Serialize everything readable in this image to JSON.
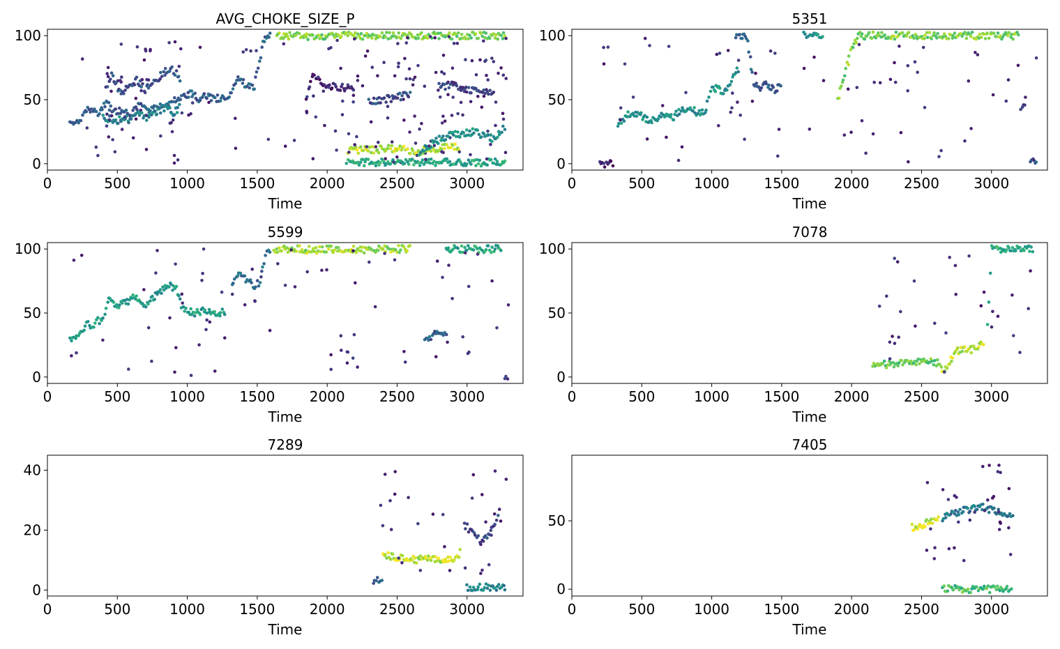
{
  "figure": {
    "layout": "3 rows x 2 columns",
    "colormap": "viridis",
    "background": "#ffffff"
  },
  "chart_data": [
    {
      "type": "scatter",
      "title": "AVG_CHOKE_SIZE_P",
      "xlabel": "Time",
      "ylabel": "",
      "xlim": [
        0,
        3400
      ],
      "ylim": [
        -5,
        105
      ],
      "xticks": [
        0,
        500,
        1000,
        1500,
        2000,
        2500,
        3000
      ],
      "yticks": [
        0,
        50,
        100
      ],
      "grid": false,
      "colormap": "viridis",
      "trend_segments": [
        {
          "x": [
            160,
            200,
            230,
            260,
            300,
            360,
            420,
            480,
            540,
            600,
            660,
            720,
            780,
            840,
            900,
            960,
            1020,
            1080,
            1140,
            1200,
            1260,
            1300,
            1360,
            1420,
            1480,
            1540,
            1600
          ],
          "y": [
            30,
            31,
            33,
            42,
            43,
            40,
            47,
            41,
            42,
            39,
            47,
            40,
            44,
            46,
            49,
            52,
            55,
            51,
            53,
            51,
            52,
            53,
            66,
            62,
            60,
            95,
            100
          ],
          "c": 0.3
        },
        {
          "x": [
            400,
            450,
            500,
            550,
            600,
            650,
            700,
            750,
            800,
            850,
            900,
            950
          ],
          "y": [
            36,
            35,
            34,
            36,
            34,
            38,
            36,
            37,
            42,
            44,
            40,
            45
          ],
          "c": 0.45
        },
        {
          "x": [
            420,
            460,
            520,
            580,
            640,
            700,
            760,
            820,
            880,
            920,
            960
          ],
          "y": [
            58,
            70,
            55,
            60,
            65,
            58,
            63,
            70,
            74,
            70,
            62
          ],
          "c": 0.25
        },
        {
          "x": [
            1640,
            1700,
            1760,
            1820,
            1900,
            2000,
            2100,
            2200,
            2300,
            2400,
            2500,
            2600,
            2700,
            2800,
            2900,
            3000,
            3100,
            3200,
            3280
          ],
          "y": [
            100,
            100,
            100,
            100,
            99,
            100,
            100,
            100,
            99,
            100,
            100,
            100,
            100,
            100,
            100,
            100,
            100,
            100,
            100
          ],
          "c": 0.8
        },
        {
          "x": [
            2150,
            2250,
            2350,
            2450,
            2550,
            2650,
            2700,
            2800,
            2900,
            2950
          ],
          "y": [
            10,
            11,
            11,
            12,
            11,
            9,
            11,
            12,
            13,
            12
          ],
          "c": 0.9
        },
        {
          "x": [
            2140,
            2300,
            2500,
            2700,
            2900,
            3100,
            3280
          ],
          "y": [
            1,
            1,
            1,
            1,
            1,
            1,
            1
          ],
          "c": 0.6
        },
        {
          "x": [
            2660,
            2700,
            2760,
            2820,
            2880,
            2940,
            3000,
            3060,
            3120,
            3180,
            3240,
            3280
          ],
          "y": [
            5,
            12,
            16,
            20,
            22,
            23,
            24,
            25,
            22,
            20,
            25,
            30
          ],
          "c": 0.5
        },
        {
          "x": [
            2300,
            2400,
            2500,
            2600
          ],
          "y": [
            48,
            50,
            52,
            54
          ],
          "c": 0.25
        },
        {
          "x": [
            2800,
            2900,
            3000,
            3100,
            3200
          ],
          "y": [
            60,
            62,
            58,
            56,
            55
          ],
          "c": 0.2
        },
        {
          "x": [
            1850,
            1900,
            2000,
            2100,
            2200
          ],
          "y": [
            50,
            70,
            60,
            60,
            58
          ],
          "c": 0.1
        }
      ]
    },
    {
      "type": "scatter",
      "title": "5351",
      "xlabel": "Time",
      "ylabel": "",
      "xlim": [
        0,
        3400
      ],
      "ylim": [
        -5,
        105
      ],
      "xticks": [
        0,
        500,
        1000,
        1500,
        2000,
        2500,
        3000
      ],
      "yticks": [
        0,
        50,
        100
      ],
      "grid": false,
      "colormap": "viridis",
      "trend_segments": [
        {
          "x": [
            200,
            300
          ],
          "y": [
            0,
            0
          ],
          "c": 0.05
        },
        {
          "x": [
            330,
            380,
            430,
            480,
            540,
            600,
            660,
            720,
            780,
            840,
            900,
            960,
            1000,
            1050,
            1100,
            1150,
            1200
          ],
          "y": [
            30,
            36,
            40,
            38,
            35,
            34,
            38,
            36,
            42,
            44,
            40,
            42,
            60,
            58,
            56,
            66,
            75
          ],
          "c": 0.5
        },
        {
          "x": [
            1170,
            1200,
            1250,
            1300,
            1350,
            1400,
            1450,
            1500
          ],
          "y": [
            100,
            100,
            100,
            64,
            60,
            62,
            58,
            60
          ],
          "c": 0.3
        },
        {
          "x": [
            1660,
            1700,
            1760,
            1800
          ],
          "y": [
            100,
            100,
            100,
            100
          ],
          "c": 0.5
        },
        {
          "x": [
            1900,
            1950,
            2000,
            2050,
            2100,
            2200,
            2300,
            2400,
            2500,
            2600,
            2700,
            2800,
            2900,
            3000,
            3100,
            3200
          ],
          "y": [
            50,
            70,
            90,
            100,
            100,
            100,
            100,
            100,
            100,
            100,
            100,
            100,
            100,
            100,
            100,
            100
          ],
          "c": 0.8
        },
        {
          "x": [
            3210,
            3250
          ],
          "y": [
            45,
            45
          ],
          "c": 0.2
        },
        {
          "x": [
            3280,
            3330
          ],
          "y": [
            1,
            1
          ],
          "c": 0.25
        }
      ]
    },
    {
      "type": "scatter",
      "title": "5599",
      "xlabel": "Time",
      "ylabel": "",
      "xlim": [
        0,
        3400
      ],
      "ylim": [
        -5,
        105
      ],
      "xticks": [
        0,
        500,
        1000,
        1500,
        2000,
        2500,
        3000
      ],
      "yticks": [
        0,
        50,
        100
      ],
      "grid": false,
      "colormap": "viridis",
      "trend_segments": [
        {
          "x": [
            160,
            200,
            240,
            280,
            320,
            360,
            400,
            440,
            500,
            560,
            620,
            680,
            740,
            800,
            860,
            920,
            960,
            1000,
            1060,
            1120,
            1180,
            1240,
            1280
          ],
          "y": [
            30,
            31,
            34,
            42,
            40,
            44,
            45,
            62,
            55,
            58,
            63,
            55,
            60,
            66,
            72,
            68,
            55,
            52,
            50,
            52,
            51,
            50,
            52
          ],
          "c": 0.55
        },
        {
          "x": [
            1320,
            1360,
            1400,
            1440,
            1480,
            1520,
            1560,
            1600
          ],
          "y": [
            72,
            80,
            78,
            76,
            70,
            75,
            95,
            100
          ],
          "c": 0.35
        },
        {
          "x": [
            1620,
            1700,
            1800,
            1900,
            2000,
            2100,
            2200,
            2300,
            2400,
            2500,
            2600
          ],
          "y": [
            100,
            100,
            100,
            99,
            100,
            100,
            100,
            99,
            100,
            100,
            100
          ],
          "c": 0.85
        },
        {
          "x": [
            2700,
            2760,
            2820,
            2860
          ],
          "y": [
            28,
            33,
            35,
            35
          ],
          "c": 0.3
        },
        {
          "x": [
            2850,
            2900,
            3000,
            3100,
            3200,
            3250
          ],
          "y": [
            100,
            100,
            100,
            100,
            100,
            100
          ],
          "c": 0.6
        },
        {
          "x": [
            3270,
            3300
          ],
          "y": [
            1,
            1
          ],
          "c": 0.2
        }
      ]
    },
    {
      "type": "scatter",
      "title": "7078",
      "xlabel": "Time",
      "ylabel": "",
      "xlim": [
        0,
        3400
      ],
      "ylim": [
        -5,
        105
      ],
      "xticks": [
        0,
        500,
        1000,
        1500,
        2000,
        2500,
        3000
      ],
      "yticks": [
        0,
        50,
        100
      ],
      "grid": false,
      "colormap": "viridis",
      "trend_segments": [
        {
          "x": [
            2150,
            2250,
            2350,
            2450,
            2550,
            2650
          ],
          "y": [
            9,
            10,
            11,
            11,
            12,
            10
          ],
          "c": 0.75
        },
        {
          "x": [
            2650,
            2700,
            2750,
            2800,
            2850,
            2900,
            2950
          ],
          "y": [
            5,
            12,
            20,
            22,
            21,
            24,
            26
          ],
          "c": 0.9
        },
        {
          "x": [
            2970,
            3000,
            3050,
            3100,
            3150,
            3200,
            3250,
            3300
          ],
          "y": [
            40,
            100,
            100,
            100,
            100,
            100,
            100,
            100
          ],
          "c": 0.6
        }
      ]
    },
    {
      "type": "scatter",
      "title": "7289",
      "xlabel": "Time",
      "ylabel": "",
      "xlim": [
        0,
        3400
      ],
      "ylim": [
        -2,
        45
      ],
      "xticks": [
        0,
        500,
        1000,
        1500,
        2000,
        2500,
        3000
      ],
      "yticks": [
        0,
        20,
        40
      ],
      "grid": false,
      "colormap": "viridis",
      "trend_segments": [
        {
          "x": [
            2330,
            2360,
            2400
          ],
          "y": [
            3,
            4,
            3
          ],
          "c": 0.3
        },
        {
          "x": [
            2400,
            2460,
            2520,
            2580,
            2640,
            2700,
            2760,
            2820,
            2880,
            2920,
            2960
          ],
          "y": [
            12,
            11,
            11,
            11,
            10,
            11,
            10,
            10,
            10,
            11,
            13
          ],
          "c": 0.9
        },
        {
          "x": [
            2980,
            3020,
            3060,
            3100,
            3150,
            3200,
            3240
          ],
          "y": [
            22,
            20,
            18,
            16,
            18,
            22,
            30
          ],
          "c": 0.2
        },
        {
          "x": [
            3000,
            3100,
            3200,
            3280
          ],
          "y": [
            1,
            1,
            1,
            1
          ],
          "c": 0.45
        }
      ]
    },
    {
      "type": "scatter",
      "title": "7405",
      "xlabel": "Time",
      "ylabel": "",
      "xlim": [
        0,
        3400
      ],
      "ylim": [
        -5,
        98
      ],
      "xticks": [
        0,
        500,
        1000,
        1500,
        2000,
        2500,
        3000
      ],
      "yticks": [
        0,
        50
      ],
      "grid": false,
      "colormap": "viridis",
      "trend_segments": [
        {
          "x": [
            2430,
            2480,
            2530,
            2580,
            2630
          ],
          "y": [
            45,
            46,
            48,
            50,
            52
          ],
          "c": 0.9
        },
        {
          "x": [
            2650,
            2700,
            2760,
            2820,
            2880,
            2940,
            3000,
            3060,
            3120,
            3160
          ],
          "y": [
            52,
            55,
            56,
            58,
            60,
            60,
            58,
            56,
            54,
            54
          ],
          "c": 0.4
        },
        {
          "x": [
            2650,
            2750,
            2850,
            2950,
            3050,
            3150
          ],
          "y": [
            0,
            0,
            0,
            0,
            0,
            0
          ],
          "c": 0.7
        }
      ]
    }
  ]
}
